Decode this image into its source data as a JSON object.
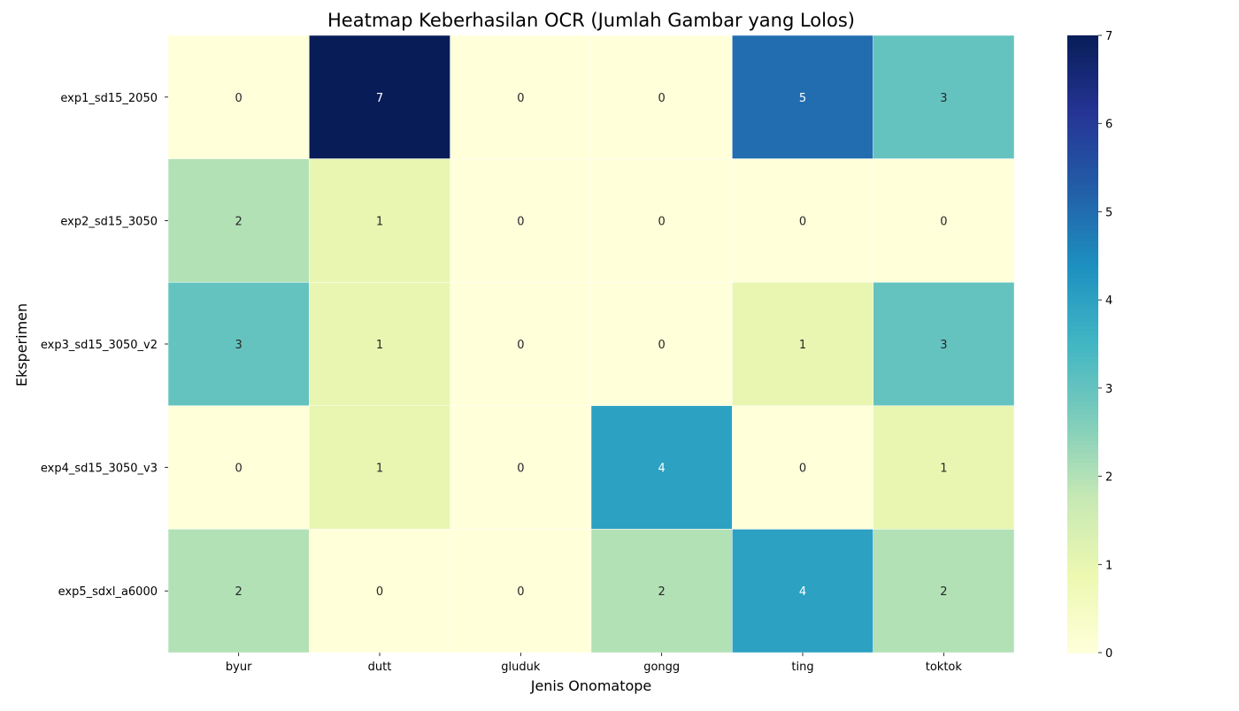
{
  "chart_data": {
    "type": "heatmap",
    "title": "Heatmap Keberhasilan OCR (Jumlah Gambar yang Lolos)",
    "xlabel": "Jenis Onomatope",
    "ylabel": "Eksperimen",
    "x_categories": [
      "byur",
      "dutt",
      "gluduk",
      "gongg",
      "ting",
      "toktok"
    ],
    "y_categories": [
      "exp1_sd15_2050",
      "exp2_sd15_3050",
      "exp3_sd15_3050_v2",
      "exp4_sd15_3050_v3",
      "exp5_sdxl_a6000"
    ],
    "values": [
      [
        0,
        7,
        0,
        0,
        5,
        3
      ],
      [
        2,
        1,
        0,
        0,
        0,
        0
      ],
      [
        3,
        1,
        0,
        0,
        1,
        3
      ],
      [
        0,
        1,
        0,
        4,
        0,
        1
      ],
      [
        2,
        0,
        0,
        2,
        4,
        2
      ]
    ],
    "annotate": true,
    "colormap": "YlGnBu",
    "vmin": 0,
    "vmax": 7,
    "colorbar_ticks": [
      0,
      1,
      2,
      3,
      4,
      5,
      6,
      7
    ],
    "legend": "colorbar-right",
    "grid": false
  }
}
